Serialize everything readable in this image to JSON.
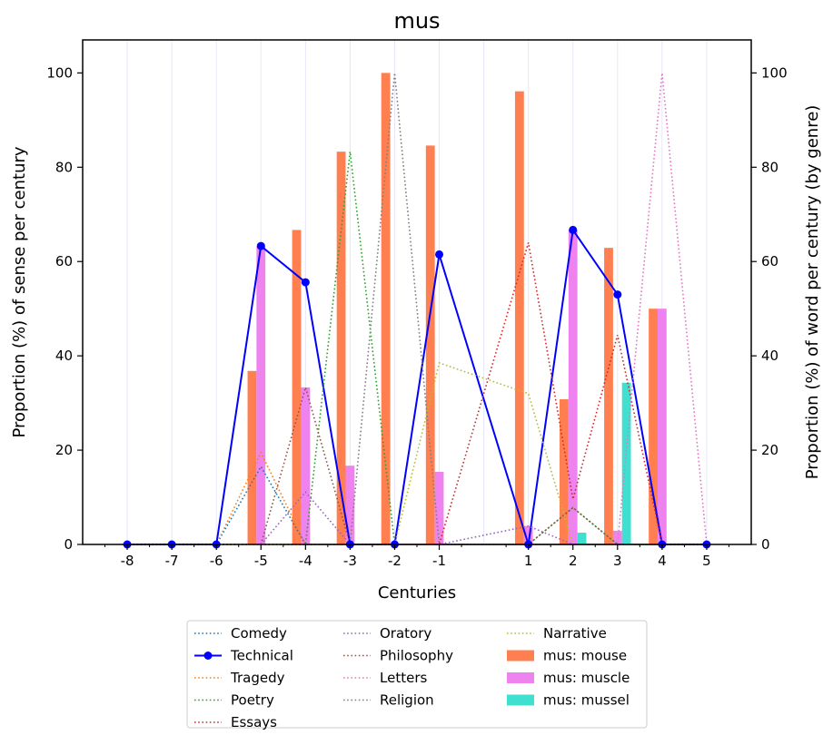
{
  "chart_data": {
    "type": "bar",
    "title": "mus",
    "xlabel": "Centuries",
    "ylabel_left": "Proportion (%) of sense per century",
    "ylabel_right": "Proportion (%) of word per century (by genre)",
    "ylim_left": [
      0,
      107
    ],
    "ylim_right": [
      0,
      107
    ],
    "xlim": [
      -9,
      6
    ],
    "left_ticks": [
      0,
      20,
      40,
      60,
      80,
      100
    ],
    "right_ticks": [
      0,
      20,
      40,
      60,
      80,
      100
    ],
    "x": [
      "-8",
      "-7",
      "-6",
      "-5",
      "-4",
      "-3",
      "-2",
      "-1",
      "1",
      "2",
      "3",
      "4",
      "5"
    ],
    "x_positions": [
      -8,
      -7,
      -6,
      -5,
      -4,
      -3,
      -2,
      -1,
      1,
      2,
      3,
      4,
      5
    ],
    "grid": "vertical",
    "legend_position": "bottom-center",
    "bars": [
      {
        "name": "mus: mouse",
        "color": "#ff7f50",
        "offset": -0.3,
        "values": [
          0,
          0,
          0,
          36.8,
          66.7,
          83.3,
          100,
          84.6,
          96.1,
          30.8,
          62.9,
          50,
          0
        ]
      },
      {
        "name": "mus: muscle",
        "color": "#ee82ee",
        "offset": -0.1,
        "values": [
          0,
          0,
          0,
          63.2,
          33.3,
          16.7,
          0,
          15.4,
          3.9,
          66.7,
          2.9,
          50,
          0
        ]
      },
      {
        "name": "mus: mussel",
        "color": "#40e0d0",
        "offset": 0.1,
        "values": [
          0,
          0,
          0,
          0,
          0,
          0,
          0,
          0,
          0,
          2.5,
          34.3,
          0,
          0
        ]
      }
    ],
    "lines": [
      {
        "name": "Comedy",
        "color": "#1f77b4",
        "style": "dotted",
        "values": [
          0,
          0,
          0,
          16.5,
          0,
          0,
          0,
          0,
          0,
          0,
          0,
          0,
          0
        ]
      },
      {
        "name": "Technical",
        "color": "#0000ff",
        "style": "solid-marker",
        "values": [
          0,
          0,
          0,
          63.3,
          55.6,
          0,
          0,
          61.5,
          0,
          66.7,
          53,
          0,
          0
        ]
      },
      {
        "name": "Tragedy",
        "color": "#ff7f0e",
        "style": "dotted",
        "values": [
          0,
          0,
          0,
          19.5,
          0,
          0,
          0,
          0,
          0,
          0,
          0,
          0,
          0
        ]
      },
      {
        "name": "Poetry",
        "color": "#2ca02c",
        "style": "dotted",
        "values": [
          0,
          0,
          0,
          0,
          0,
          83.3,
          0,
          0,
          0,
          7.8,
          0,
          0,
          0
        ]
      },
      {
        "name": "Essays",
        "color": "#d62728",
        "style": "dotted",
        "values": [
          0,
          0,
          0,
          0,
          0,
          0,
          0,
          0,
          64,
          9.6,
          44.4,
          0,
          0
        ]
      },
      {
        "name": "Oratory",
        "color": "#9467bd",
        "style": "dotted",
        "values": [
          0,
          0,
          0,
          0,
          11.1,
          0,
          0,
          0,
          3.9,
          0,
          0,
          0,
          0
        ]
      },
      {
        "name": "Philosophy",
        "color": "#8c564b",
        "style": "dotted",
        "values": [
          0,
          0,
          0,
          0,
          33.3,
          0,
          0,
          0,
          0,
          7.8,
          0,
          0,
          0
        ]
      },
      {
        "name": "Letters",
        "color": "#e377c2",
        "style": "dotted",
        "values": [
          0,
          0,
          0,
          0,
          0,
          0,
          0,
          0,
          0,
          0,
          0,
          100,
          0
        ]
      },
      {
        "name": "Religion",
        "color": "#7f7f7f",
        "style": "dotted",
        "values": [
          0,
          0,
          0,
          0,
          0,
          0,
          100,
          0,
          0,
          0,
          0,
          0,
          0
        ]
      },
      {
        "name": "Narrative",
        "color": "#bcbd22",
        "style": "dotted",
        "values": [
          0,
          0,
          0,
          0,
          0,
          0,
          0,
          38.5,
          32,
          0,
          0,
          0,
          0
        ]
      }
    ],
    "legend": [
      [
        {
          "label": "Comedy",
          "kind": "dotted",
          "color": "#1f77b4"
        },
        {
          "label": "Technical",
          "kind": "marker",
          "color": "#0000ff"
        },
        {
          "label": "Tragedy",
          "kind": "dotted",
          "color": "#ff7f0e"
        },
        {
          "label": "Poetry",
          "kind": "dotted",
          "color": "#2ca02c"
        },
        {
          "label": "Essays",
          "kind": "dotted",
          "color": "#d62728"
        }
      ],
      [
        {
          "label": "Oratory",
          "kind": "dotted",
          "color": "#9467bd"
        },
        {
          "label": "Philosophy",
          "kind": "dotted",
          "color": "#8c564b"
        },
        {
          "label": "Letters",
          "kind": "dotted",
          "color": "#e377c2"
        },
        {
          "label": "Religion",
          "kind": "dotted",
          "color": "#7f7f7f"
        }
      ],
      [
        {
          "label": "Narrative",
          "kind": "dotted",
          "color": "#bcbd22"
        },
        {
          "label": "mus: mouse",
          "kind": "patch",
          "color": "#ff7f50"
        },
        {
          "label": "mus: muscle",
          "kind": "patch",
          "color": "#ee82ee"
        },
        {
          "label": "mus: mussel",
          "kind": "patch",
          "color": "#40e0d0"
        }
      ]
    ]
  }
}
